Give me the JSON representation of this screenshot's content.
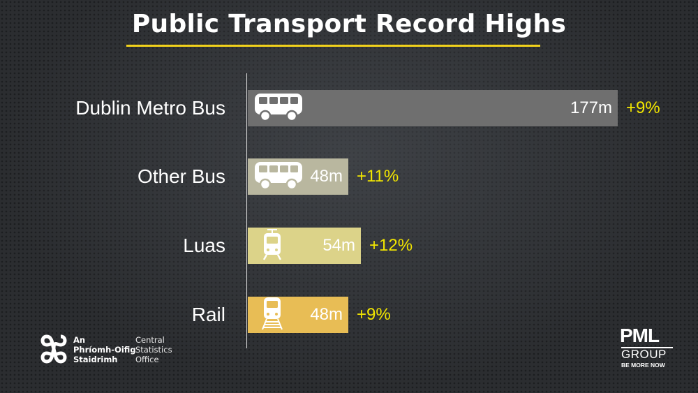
{
  "chart_data": {
    "type": "bar",
    "orientation": "horizontal",
    "title": "Public Transport Record Highs",
    "categories": [
      "Dublin Metro Bus",
      "Other Bus",
      "Luas",
      "Rail"
    ],
    "values": [
      177,
      48,
      54,
      48
    ],
    "value_labels": [
      "177m",
      "48m",
      "54m",
      "48m"
    ],
    "changes": [
      "+9%",
      "+11%",
      "+12%",
      "+9%"
    ],
    "unit": "m",
    "bar_colors": [
      "#6f6f6f",
      "#b9b79f",
      "#dcd389",
      "#e8bd55"
    ],
    "icons": [
      "bus-icon",
      "bus-icon",
      "tram-icon",
      "train-icon"
    ],
    "xlim": [
      0,
      177
    ],
    "grid": false,
    "legend": "none"
  },
  "colors": {
    "title_underline": "#f2d21b",
    "change_text": "#f2e600",
    "axis_line": "#d8d8d8"
  },
  "logos": {
    "cso": {
      "irish_lines": [
        "An",
        "Phríomh-Oifig",
        "Staidrimh"
      ],
      "english_lines": [
        "Central",
        "Statistics",
        "Office"
      ]
    },
    "pml": {
      "name": "PML",
      "group": "GROUP",
      "tagline": "BE MORE NOW"
    }
  }
}
